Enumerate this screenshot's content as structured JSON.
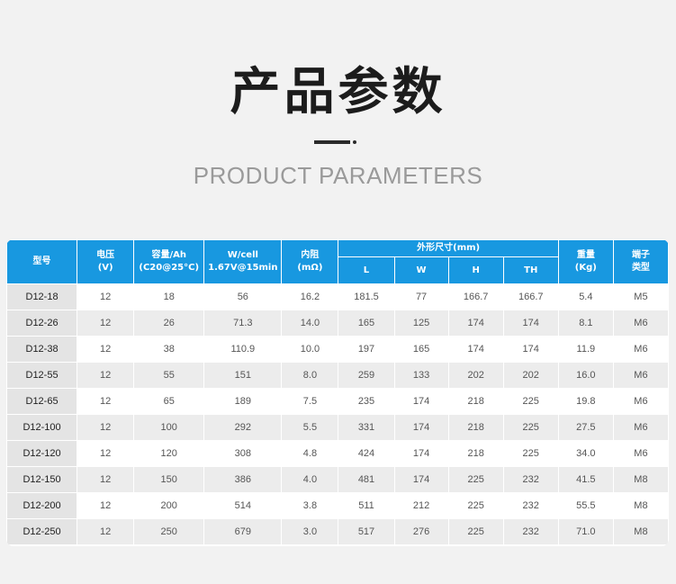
{
  "header": {
    "title": "产品参数",
    "subtitle": "PRODUCT PARAMETERS"
  },
  "table": {
    "headers": {
      "model": "型号",
      "voltage": [
        "电压",
        "(V)"
      ],
      "capacity": [
        "容量/Ah",
        "(C20@25°C)"
      ],
      "wcell": [
        "W/cell",
        "1.67V@15min"
      ],
      "resistance": [
        "内阻",
        "(mΩ)"
      ],
      "dimensions": "外形尺寸(mm)",
      "dims": [
        "L",
        "W",
        "H",
        "TH"
      ],
      "weight": [
        "重量",
        "(Kg)"
      ],
      "terminal": [
        "端子",
        "类型"
      ]
    },
    "rows": [
      [
        "D12-18",
        "12",
        "18",
        "56",
        "16.2",
        "181.5",
        "77",
        "166.7",
        "166.7",
        "5.4",
        "M5"
      ],
      [
        "D12-26",
        "12",
        "26",
        "71.3",
        "14.0",
        "165",
        "125",
        "174",
        "174",
        "8.1",
        "M6"
      ],
      [
        "D12-38",
        "12",
        "38",
        "110.9",
        "10.0",
        "197",
        "165",
        "174",
        "174",
        "11.9",
        "M6"
      ],
      [
        "D12-55",
        "12",
        "55",
        "151",
        "8.0",
        "259",
        "133",
        "202",
        "202",
        "16.0",
        "M6"
      ],
      [
        "D12-65",
        "12",
        "65",
        "189",
        "7.5",
        "235",
        "174",
        "218",
        "225",
        "19.8",
        "M6"
      ],
      [
        "D12-100",
        "12",
        "100",
        "292",
        "5.5",
        "331",
        "174",
        "218",
        "225",
        "27.5",
        "M6"
      ],
      [
        "D12-120",
        "12",
        "120",
        "308",
        "4.8",
        "424",
        "174",
        "218",
        "225",
        "34.0",
        "M6"
      ],
      [
        "D12-150",
        "12",
        "150",
        "386",
        "4.0",
        "481",
        "174",
        "225",
        "232",
        "41.5",
        "M8"
      ],
      [
        "D12-200",
        "12",
        "200",
        "514",
        "3.8",
        "511",
        "212",
        "225",
        "232",
        "55.5",
        "M8"
      ],
      [
        "D12-250",
        "12",
        "250",
        "679",
        "3.0",
        "517",
        "276",
        "225",
        "232",
        "71.0",
        "M8"
      ]
    ]
  },
  "colors": {
    "header_bg": "#1898e0",
    "page_bg": "#f2f2f2"
  }
}
